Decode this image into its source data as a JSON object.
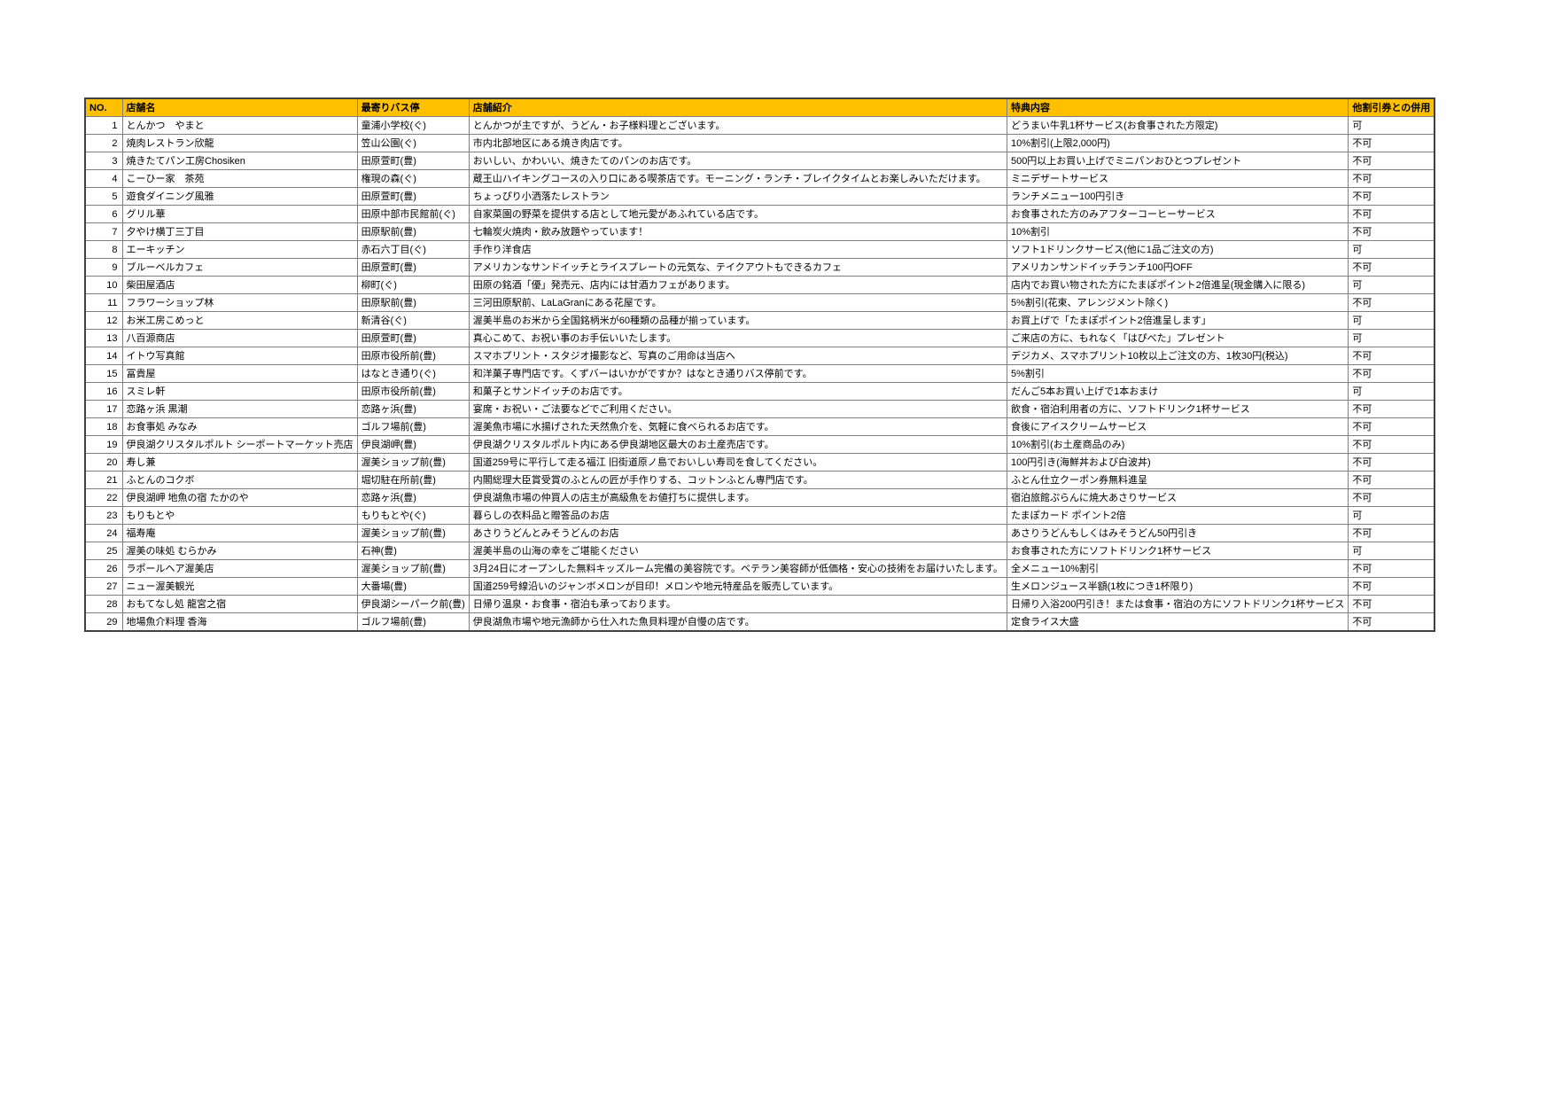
{
  "table": {
    "header_bg": "#FFC000",
    "headers": [
      "NO.",
      "店舗名",
      "最寄りバス停",
      "店舗紹介",
      "特典内容",
      "他割引券との併用"
    ],
    "rows": [
      {
        "no": "1",
        "name": "とんかつ　やまと",
        "bus_stop": "童浦小学校(ぐ)",
        "intro": "とんかつが主ですが、うどん・お子様料理とございます。",
        "benefit": "どうまい牛乳1杯サービス(お食事された方限定)",
        "combinable": "可"
      },
      {
        "no": "2",
        "name": "焼肉レストラン欣龍",
        "bus_stop": "笠山公園(ぐ)",
        "intro": "市内北部地区にある焼き肉店です。",
        "benefit": "10%割引(上限2,000円)",
        "combinable": "不可"
      },
      {
        "no": "3",
        "name": "焼きたてパン工房Chosiken",
        "bus_stop": "田原萱町(豊)",
        "intro": "おいしい、かわいい、焼きたてのパンのお店です。",
        "benefit": "500円以上お買い上げでミニパンおひとつプレゼント",
        "combinable": "不可"
      },
      {
        "no": "4",
        "name": "こーひー家　茶苑",
        "bus_stop": "権現の森(ぐ)",
        "intro": "蔵王山ハイキングコースの入り口にある喫茶店です。モーニング・ランチ・ブレイクタイムとお楽しみいただけます。",
        "benefit": "ミニデザートサービス",
        "combinable": "不可"
      },
      {
        "no": "5",
        "name": "遊食ダイニング風雅",
        "bus_stop": "田原萱町(豊)",
        "intro": "ちょっぴり小洒落たレストラン",
        "benefit": "ランチメニュー100円引き",
        "combinable": "不可"
      },
      {
        "no": "6",
        "name": "グリル華",
        "bus_stop": "田原中部市民館前(ぐ)",
        "intro": "自家菜園の野菜を提供する店として地元愛があふれている店です。",
        "benefit": "お食事された方のみアフターコーヒーサービス",
        "combinable": "不可"
      },
      {
        "no": "7",
        "name": "夕やけ横丁三丁目",
        "bus_stop": "田原駅前(豊)",
        "intro": "七輪炭火焼肉・飲み放題やっています！",
        "benefit": "10%割引",
        "combinable": "不可"
      },
      {
        "no": "8",
        "name": "エーキッチン",
        "bus_stop": "赤石六丁目(ぐ)",
        "intro": "手作り洋食店",
        "benefit": "ソフト1ドリンクサービス(他に1品ご注文の方)",
        "combinable": "可"
      },
      {
        "no": "9",
        "name": "ブルーベルカフェ",
        "bus_stop": "田原萱町(豊)",
        "intro": "アメリカンなサンドイッチとライスプレートの元気な、テイクアウトもできるカフェ",
        "benefit": "アメリカンサンドイッチランチ100円OFF",
        "combinable": "不可"
      },
      {
        "no": "10",
        "name": "柴田屋酒店",
        "bus_stop": "柳町(ぐ)",
        "intro": "田原の銘酒「優」発売元、店内には甘酒カフェがあります。",
        "benefit": "店内でお買い物された方にたまぽポイント2倍進呈(現金購入に限る)",
        "combinable": "可"
      },
      {
        "no": "11",
        "name": "フラワーショップ林",
        "bus_stop": "田原駅前(豊)",
        "intro": "三河田原駅前、LaLaGranにある花屋です。",
        "benefit": "5%割引(花束、アレンジメント除く)",
        "combinable": "不可"
      },
      {
        "no": "12",
        "name": "お米工房こめっと",
        "bus_stop": "新清谷(ぐ)",
        "intro": "渥美半島のお米から全国銘柄米が60種類の品種が揃っています。",
        "benefit": "お買上げで「たまぽポイント2倍進呈します」",
        "combinable": "可"
      },
      {
        "no": "13",
        "name": "八百源商店",
        "bus_stop": "田原萱町(豊)",
        "intro": "真心こめて、お祝い事のお手伝いいたします。",
        "benefit": "ご来店の方に、もれなく「はぴべた」プレゼント",
        "combinable": "可"
      },
      {
        "no": "14",
        "name": "イトウ写真館",
        "bus_stop": "田原市役所前(豊)",
        "intro": "スマホプリント・スタジオ撮影など、写真のご用命は当店へ",
        "benefit": "デジカメ、スマホプリント10枚以上ご注文の方、1枚30円(税込)",
        "combinable": "不可"
      },
      {
        "no": "15",
        "name": "冨貴屋",
        "bus_stop": "はなとき通り(ぐ)",
        "intro": "和洋菓子専門店です。くずバーはいかがですか？はなとき通りバス停前です。",
        "benefit": "5%割引",
        "combinable": "不可"
      },
      {
        "no": "16",
        "name": "スミレ軒",
        "bus_stop": "田原市役所前(豊)",
        "intro": "和菓子とサンドイッチのお店です。",
        "benefit": "だんご5本お買い上げで1本おまけ",
        "combinable": "可"
      },
      {
        "no": "17",
        "name": "恋路ヶ浜 黒潮",
        "bus_stop": "恋路ヶ浜(豊)",
        "intro": "宴席・お祝い・ご法要などでご利用ください。",
        "benefit": "飲食・宿泊利用者の方に、ソフトドリンク1杯サービス",
        "combinable": "不可"
      },
      {
        "no": "18",
        "name": "お食事処 みなみ",
        "bus_stop": "ゴルフ場前(豊)",
        "intro": "渥美魚市場に水揚げされた天然魚介を、気軽に食べられるお店です。",
        "benefit": "食後にアイスクリームサービス",
        "combinable": "不可"
      },
      {
        "no": "19",
        "name": "伊良湖クリスタルポルト シーポートマーケット売店",
        "bus_stop": "伊良湖岬(豊)",
        "intro": "伊良湖クリスタルポルト内にある伊良湖地区最大のお土産売店です。",
        "benefit": "10%割引(お土産商品のみ)",
        "combinable": "不可"
      },
      {
        "no": "20",
        "name": "寿し兼",
        "bus_stop": "渥美ショップ前(豊)",
        "intro": "国道259号に平行して走る福江 旧街道原ノ島でおいしい寿司を食してください。",
        "benefit": "100円引き(海鮮丼および白波丼)",
        "combinable": "不可"
      },
      {
        "no": "21",
        "name": "ふとんのコクボ",
        "bus_stop": "堀切駐在所前(豊)",
        "intro": "内閣総理大臣賞受賞のふとんの匠が手作りする、コットンふとん専門店です。",
        "benefit": "ふとん仕立クーポン券無料進呈",
        "combinable": "不可"
      },
      {
        "no": "22",
        "name": "伊良湖岬 地魚の宿 たかのや",
        "bus_stop": "恋路ヶ浜(豊)",
        "intro": "伊良湖魚市場の仲買人の店主が高級魚をお値打ちに提供します。",
        "benefit": "宿泊旅館ぷらんに焼大あさりサービス",
        "combinable": "不可"
      },
      {
        "no": "23",
        "name": "もりもとや",
        "bus_stop": "もりもとや(ぐ)",
        "intro": "暮らしの衣料品と贈答品のお店",
        "benefit": "たまぽカード ポイント2倍",
        "combinable": "可"
      },
      {
        "no": "24",
        "name": "福寿庵",
        "bus_stop": "渥美ショップ前(豊)",
        "intro": "あさりうどんとみそうどんのお店",
        "benefit": "あさりうどんもしくはみそうどん50円引き",
        "combinable": "不可"
      },
      {
        "no": "25",
        "name": "渥美の味処 むらかみ",
        "bus_stop": "石神(豊)",
        "intro": "渥美半島の山海の幸をご堪能ください",
        "benefit": "お食事された方にソフトドリンク1杯サービス",
        "combinable": "可"
      },
      {
        "no": "26",
        "name": "ラポールヘア渥美店",
        "bus_stop": "渥美ショップ前(豊)",
        "intro": "3月24日にオープンした無料キッズルーム完備の美容院です。ベテラン美容師が低価格・安心の技術をお届けいたします。",
        "benefit": "全メニュー10%割引",
        "combinable": "不可"
      },
      {
        "no": "27",
        "name": "ニュー渥美観光",
        "bus_stop": "大番場(豊)",
        "intro": "国道259号線沿いのジャンボメロンが目印！メロンや地元特産品を販売しています。",
        "benefit": "生メロンジュース半額(1枚につき1杯限り)",
        "combinable": "不可"
      },
      {
        "no": "28",
        "name": "おもてなし処 龍宮之宿",
        "bus_stop": "伊良湖シーパーク前(豊)",
        "intro": "日帰り温泉・お食事・宿泊も承っております。",
        "benefit": "日帰り入浴200円引き！または食事・宿泊の方にソフトドリンク1杯サービス",
        "combinable": "不可"
      },
      {
        "no": "29",
        "name": "地場魚介料理 香海",
        "bus_stop": "ゴルフ場前(豊)",
        "intro": "伊良湖魚市場や地元漁師から仕入れた魚貝料理が自慢の店です。",
        "benefit": "定食ライス大盛",
        "combinable": "不可"
      }
    ]
  }
}
